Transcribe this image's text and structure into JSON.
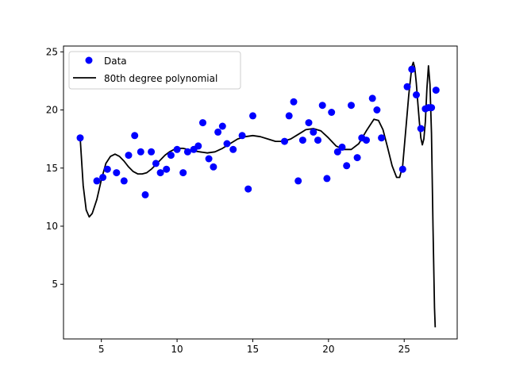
{
  "chart_data": {
    "type": "scatter",
    "title": "",
    "xlabel": "",
    "ylabel": "",
    "xlim": [
      2.5,
      28.5
    ],
    "ylim": [
      0.3,
      25.5
    ],
    "xticks": [
      5,
      10,
      15,
      20,
      25
    ],
    "yticks": [
      5,
      10,
      15,
      20,
      25
    ],
    "grid": false,
    "legend_position": "top-left",
    "series": [
      {
        "name": "Data",
        "kind": "points",
        "color": "#0000ff",
        "points": [
          [
            3.6,
            17.6
          ],
          [
            4.7,
            13.9
          ],
          [
            5.1,
            14.2
          ],
          [
            5.4,
            14.9
          ],
          [
            6.0,
            14.6
          ],
          [
            6.5,
            13.9
          ],
          [
            6.8,
            16.1
          ],
          [
            7.2,
            17.8
          ],
          [
            7.6,
            16.4
          ],
          [
            7.9,
            12.7
          ],
          [
            8.3,
            16.4
          ],
          [
            8.6,
            15.4
          ],
          [
            8.9,
            14.6
          ],
          [
            9.3,
            14.9
          ],
          [
            9.6,
            16.1
          ],
          [
            10.0,
            16.6
          ],
          [
            10.4,
            14.6
          ],
          [
            10.7,
            16.4
          ],
          [
            11.1,
            16.6
          ],
          [
            11.4,
            16.9
          ],
          [
            11.7,
            18.9
          ],
          [
            12.1,
            15.8
          ],
          [
            12.4,
            15.1
          ],
          [
            12.7,
            18.1
          ],
          [
            13.0,
            18.6
          ],
          [
            13.3,
            17.1
          ],
          [
            13.7,
            16.6
          ],
          [
            14.3,
            17.8
          ],
          [
            14.7,
            13.2
          ],
          [
            15.0,
            19.5
          ],
          [
            17.1,
            17.3
          ],
          [
            17.4,
            19.5
          ],
          [
            17.7,
            20.7
          ],
          [
            18.0,
            13.9
          ],
          [
            18.3,
            17.4
          ],
          [
            18.7,
            18.9
          ],
          [
            19.0,
            18.1
          ],
          [
            19.3,
            17.4
          ],
          [
            19.6,
            20.4
          ],
          [
            19.9,
            14.1
          ],
          [
            20.2,
            19.8
          ],
          [
            20.6,
            16.4
          ],
          [
            20.9,
            16.8
          ],
          [
            21.2,
            15.2
          ],
          [
            21.5,
            20.4
          ],
          [
            21.9,
            15.9
          ],
          [
            22.2,
            17.6
          ],
          [
            22.5,
            17.4
          ],
          [
            22.9,
            21.0
          ],
          [
            23.2,
            20.0
          ],
          [
            23.5,
            17.6
          ],
          [
            24.9,
            14.9
          ],
          [
            25.2,
            22.0
          ],
          [
            25.5,
            23.5
          ],
          [
            25.8,
            21.3
          ],
          [
            26.1,
            18.4
          ],
          [
            26.4,
            20.1
          ],
          [
            26.6,
            20.2
          ],
          [
            26.8,
            20.2
          ],
          [
            27.1,
            21.7
          ]
        ]
      },
      {
        "name": "80th degree polynomial",
        "kind": "line",
        "color": "#000000",
        "points": [
          [
            3.6,
            17.6
          ],
          [
            3.8,
            13.5
          ],
          [
            4.0,
            11.4
          ],
          [
            4.2,
            10.8
          ],
          [
            4.4,
            11.1
          ],
          [
            4.7,
            12.3
          ],
          [
            5.0,
            14.0
          ],
          [
            5.3,
            15.4
          ],
          [
            5.6,
            16.0
          ],
          [
            5.9,
            16.2
          ],
          [
            6.2,
            16.0
          ],
          [
            6.5,
            15.6
          ],
          [
            6.8,
            15.1
          ],
          [
            7.1,
            14.7
          ],
          [
            7.4,
            14.5
          ],
          [
            7.7,
            14.5
          ],
          [
            8.0,
            14.6
          ],
          [
            8.3,
            14.9
          ],
          [
            8.6,
            15.3
          ],
          [
            8.9,
            15.7
          ],
          [
            9.2,
            16.1
          ],
          [
            9.5,
            16.4
          ],
          [
            9.8,
            16.6
          ],
          [
            10.1,
            16.7
          ],
          [
            10.4,
            16.7
          ],
          [
            10.7,
            16.6
          ],
          [
            11.0,
            16.5
          ],
          [
            11.5,
            16.4
          ],
          [
            12.0,
            16.3
          ],
          [
            12.5,
            16.4
          ],
          [
            13.0,
            16.7
          ],
          [
            13.5,
            17.1
          ],
          [
            14.0,
            17.5
          ],
          [
            14.5,
            17.7
          ],
          [
            15.0,
            17.8
          ],
          [
            15.5,
            17.7
          ],
          [
            16.0,
            17.5
          ],
          [
            16.5,
            17.3
          ],
          [
            17.0,
            17.3
          ],
          [
            17.5,
            17.5
          ],
          [
            18.0,
            17.9
          ],
          [
            18.5,
            18.3
          ],
          [
            19.0,
            18.4
          ],
          [
            19.5,
            18.2
          ],
          [
            20.0,
            17.6
          ],
          [
            20.5,
            16.9
          ],
          [
            21.0,
            16.6
          ],
          [
            21.5,
            16.6
          ],
          [
            22.0,
            17.1
          ],
          [
            22.5,
            18.2
          ],
          [
            23.0,
            19.2
          ],
          [
            23.3,
            19.1
          ],
          [
            23.6,
            18.3
          ],
          [
            23.9,
            16.8
          ],
          [
            24.2,
            15.2
          ],
          [
            24.5,
            14.2
          ],
          [
            24.7,
            14.2
          ],
          [
            24.9,
            15.2
          ],
          [
            25.1,
            18.2
          ],
          [
            25.3,
            21.3
          ],
          [
            25.5,
            23.7
          ],
          [
            25.6,
            24.1
          ],
          [
            25.7,
            23.6
          ],
          [
            25.8,
            22.3
          ],
          [
            25.9,
            20.6
          ],
          [
            26.0,
            19.0
          ],
          [
            26.1,
            17.6
          ],
          [
            26.2,
            17.0
          ],
          [
            26.3,
            17.5
          ],
          [
            26.4,
            19.0
          ],
          [
            26.5,
            21.8
          ],
          [
            26.6,
            23.8
          ],
          [
            26.7,
            22.2
          ],
          [
            26.8,
            18.0
          ],
          [
            26.9,
            10.0
          ],
          [
            27.0,
            3.0
          ],
          [
            27.05,
            1.3
          ]
        ]
      }
    ]
  }
}
